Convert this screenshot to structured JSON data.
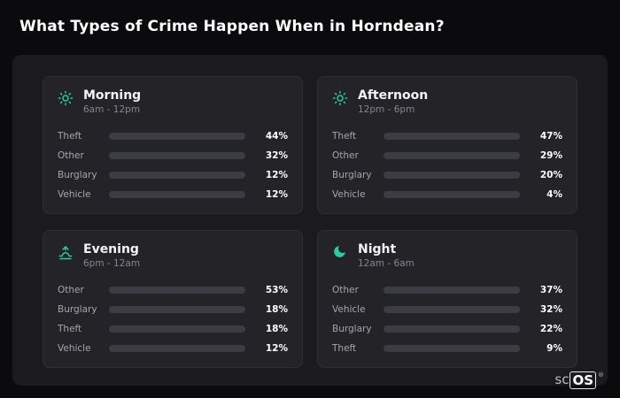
{
  "page_title": "What Types of Crime Happen When in Horndean?",
  "brand": {
    "sc": "sc",
    "os": "OS",
    "registered": "®"
  },
  "colors": {
    "icon_accent": "#2fc9a3",
    "theft": "#a55ddb",
    "other": "#5f6e81",
    "burglary": "#e2882f",
    "vehicle": "#3b82f6",
    "bar_track": "#3c3d43",
    "panel_bg": "#1b1b1e",
    "card_bg": "#242428",
    "page_bg": "#0b0b0d"
  },
  "chart_data": {
    "type": "bar",
    "unit": "%",
    "xlim": [
      0,
      100
    ],
    "orientation": "horizontal",
    "charts": [
      {
        "title": "Morning",
        "subtitle": "6am - 12pm",
        "icon": "sun-icon",
        "categories": [
          "Theft",
          "Other",
          "Burglary",
          "Vehicle"
        ],
        "values": [
          44,
          32,
          12,
          12
        ],
        "value_labels": [
          "44%",
          "32%",
          "12%",
          "12%"
        ]
      },
      {
        "title": "Afternoon",
        "subtitle": "12pm - 6pm",
        "icon": "sun-icon",
        "categories": [
          "Theft",
          "Other",
          "Burglary",
          "Vehicle"
        ],
        "values": [
          47,
          29,
          20,
          4
        ],
        "value_labels": [
          "47%",
          "29%",
          "20%",
          "4%"
        ]
      },
      {
        "title": "Evening",
        "subtitle": "6pm - 12am",
        "icon": "sunrise-icon",
        "categories": [
          "Other",
          "Burglary",
          "Theft",
          "Vehicle"
        ],
        "values": [
          53,
          18,
          18,
          12
        ],
        "value_labels": [
          "53%",
          "18%",
          "18%",
          "12%"
        ]
      },
      {
        "title": "Night",
        "subtitle": "12am - 6am",
        "icon": "moon-icon",
        "categories": [
          "Other",
          "Vehicle",
          "Burglary",
          "Theft"
        ],
        "values": [
          37,
          32,
          22,
          9
        ],
        "value_labels": [
          "37%",
          "32%",
          "22%",
          "9%"
        ]
      }
    ]
  }
}
